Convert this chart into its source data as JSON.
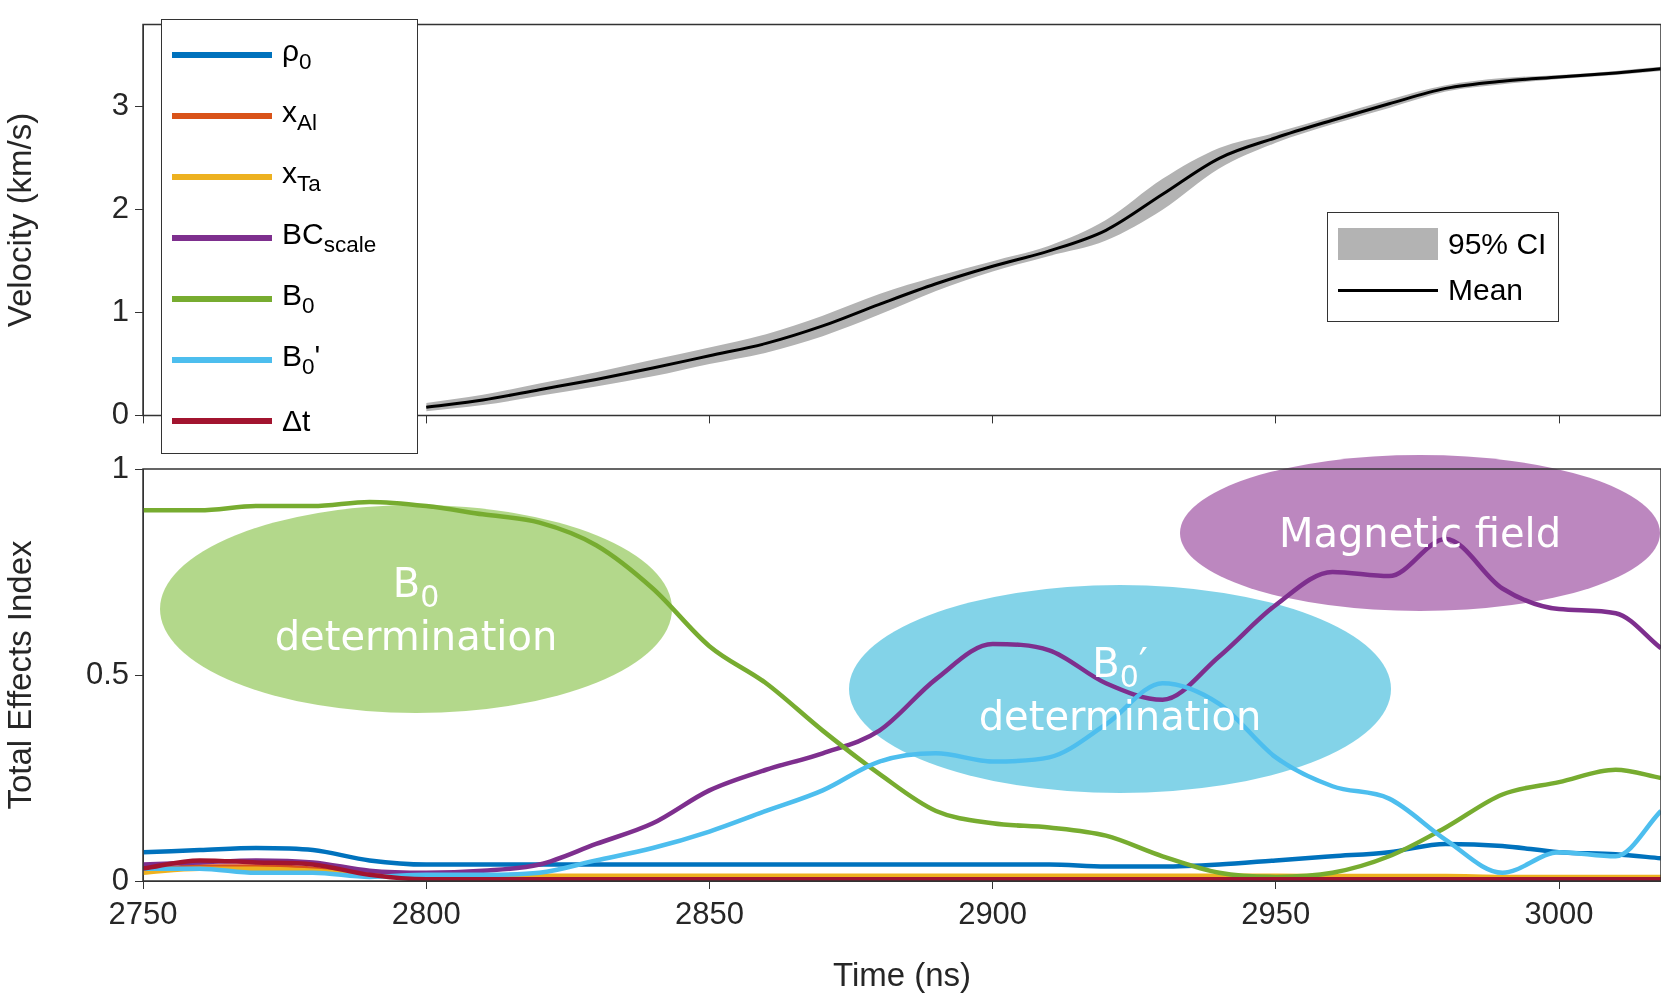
{
  "chart_data": [
    {
      "type": "line",
      "ylabel": "Velocity (km/s)",
      "x": [
        2800,
        2810,
        2820,
        2830,
        2840,
        2850,
        2860,
        2870,
        2880,
        2890,
        2900,
        2910,
        2920,
        2930,
        2940,
        2950,
        2960,
        2970,
        2980,
        2990,
        3000,
        3010,
        3018
      ],
      "xlim": [
        2750,
        3018
      ],
      "xticks": [
        2750,
        2800,
        2850,
        2900,
        2950,
        3000
      ],
      "ylim": [
        0,
        3.8
      ],
      "yticks": [
        0,
        1,
        2,
        3
      ],
      "tick_labels": "y",
      "grid": false,
      "legend": "right",
      "annotations": [
        "95% CI"
      ],
      "series": [
        {
          "name": "Mean",
          "color": "#000000",
          "values": [
            0.08,
            0.15,
            0.25,
            0.35,
            0.46,
            0.58,
            0.7,
            0.87,
            1.08,
            1.28,
            1.45,
            1.6,
            1.8,
            2.15,
            2.5,
            2.7,
            2.87,
            3.03,
            3.18,
            3.25,
            3.29,
            3.33,
            3.37
          ],
          "lower": [
            0.04,
            0.1,
            0.19,
            0.28,
            0.38,
            0.5,
            0.61,
            0.77,
            0.98,
            1.21,
            1.4,
            1.55,
            1.7,
            2.0,
            2.4,
            2.65,
            2.83,
            2.99,
            3.15,
            3.22,
            3.27,
            3.31,
            3.35
          ],
          "upper": [
            0.12,
            0.2,
            0.31,
            0.42,
            0.54,
            0.66,
            0.79,
            0.97,
            1.18,
            1.35,
            1.5,
            1.65,
            1.9,
            2.3,
            2.6,
            2.75,
            2.91,
            3.07,
            3.21,
            3.28,
            3.31,
            3.35,
            3.39
          ]
        }
      ]
    },
    {
      "type": "line",
      "xlabel": "Time (ns)",
      "ylabel": "Total Effects Index",
      "x": [
        2750,
        2760,
        2770,
        2780,
        2790,
        2800,
        2810,
        2820,
        2830,
        2840,
        2850,
        2860,
        2870,
        2880,
        2890,
        2900,
        2910,
        2920,
        2930,
        2940,
        2950,
        2960,
        2970,
        2980,
        2990,
        3000,
        3010,
        3018
      ],
      "xlim": [
        2750,
        3018
      ],
      "xticks": [
        2750,
        2800,
        2850,
        2900,
        2950,
        3000
      ],
      "ylim": [
        0,
        1
      ],
      "yticks": [
        0,
        0.5,
        1
      ],
      "grid": false,
      "legend": "top left",
      "annotations": [
        "B$_{0}$\ndetermination",
        "B$_{0}$′\ndetermination",
        "Magnetic field"
      ],
      "series": [
        {
          "name": "ρ$_{0}$",
          "color": "#0072bd",
          "values": [
            0.07,
            0.075,
            0.08,
            0.075,
            0.05,
            0.04,
            0.04,
            0.04,
            0.04,
            0.04,
            0.04,
            0.04,
            0.04,
            0.04,
            0.04,
            0.04,
            0.04,
            0.035,
            0.035,
            0.04,
            0.05,
            0.06,
            0.07,
            0.09,
            0.085,
            0.07,
            0.065,
            0.055
          ]
        },
        {
          "name": "x$_{Al}$",
          "color": "#d95319",
          "values": [
            0.025,
            0.035,
            0.035,
            0.03,
            0.012,
            null,
            null,
            null,
            null,
            null,
            null,
            null,
            null,
            null,
            null,
            null,
            null,
            null,
            null,
            null,
            null,
            null,
            null,
            null,
            null,
            null,
            null,
            null
          ]
        },
        {
          "name": "x$_{Ta}$",
          "color": "#edb120",
          "values": [
            0.02,
            0.03,
            0.03,
            0.025,
            0.015,
            0.013,
            0.013,
            0.013,
            0.013,
            0.013,
            0.013,
            0.013,
            0.013,
            0.013,
            0.013,
            0.013,
            0.013,
            0.013,
            0.013,
            0.013,
            0.013,
            0.012,
            0.012,
            0.012,
            0.01,
            0.01,
            0.01,
            0.01
          ]
        },
        {
          "name": "BC$_{scale}$",
          "color": "#7e2f8e",
          "values": [
            0.04,
            0.045,
            0.05,
            0.045,
            0.025,
            0.02,
            0.025,
            0.04,
            0.09,
            0.14,
            0.22,
            0.27,
            0.31,
            0.365,
            0.49,
            0.575,
            0.56,
            0.48,
            0.44,
            0.545,
            0.67,
            0.75,
            0.74,
            0.83,
            0.71,
            0.66,
            0.65,
            0.565
          ]
        },
        {
          "name": "B$_{0}$",
          "color": "#77ac30",
          "values": [
            0.9,
            0.9,
            0.91,
            0.91,
            0.92,
            0.91,
            0.89,
            0.87,
            0.815,
            0.71,
            0.57,
            0.48,
            0.365,
            0.26,
            0.17,
            0.14,
            0.13,
            0.11,
            0.06,
            0.02,
            0.01,
            0.02,
            0.06,
            0.13,
            0.21,
            0.24,
            0.27,
            0.25
          ]
        },
        {
          "name": "B$_{0}$'",
          "color": "#4dbeee",
          "values": [
            0.03,
            0.03,
            0.02,
            0.02,
            0.01,
            0.015,
            0.015,
            0.02,
            0.05,
            0.08,
            0.12,
            0.17,
            0.22,
            0.29,
            0.31,
            0.29,
            0.3,
            0.38,
            0.48,
            0.43,
            0.3,
            0.23,
            0.2,
            0.1,
            0.02,
            0.07,
            0.06,
            0.17
          ]
        },
        {
          "name": "Δt",
          "color": "#a2142f",
          "values": [
            0.03,
            0.05,
            0.045,
            0.04,
            0.015,
            0.004,
            0.004,
            0.004,
            0.004,
            0.004,
            0.004,
            0.004,
            0.004,
            0.004,
            0.004,
            0.004,
            0.004,
            0.004,
            0.004,
            0.004,
            0.004,
            0.004,
            0.004,
            0.004,
            0.004,
            0.004,
            0.004,
            0.004
          ]
        }
      ]
    }
  ]
}
